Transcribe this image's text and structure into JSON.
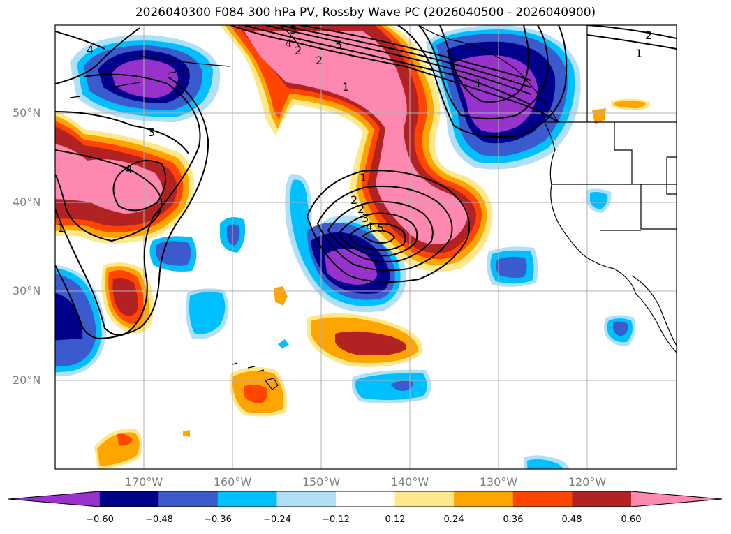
{
  "title": "2026040300 F084 300 hPa PV, Rossby Wave PC (2026040500 - 2026040900)",
  "lat_labels": [
    "50°N",
    "40°N",
    "30°N",
    "20°N"
  ],
  "lon_labels": [
    "170°W",
    "160°W",
    "150°W",
    "140°W",
    "130°W",
    "120°W"
  ],
  "colorbar": {
    "labels": [
      "−0.60",
      "−0.48",
      "−0.36",
      "−0.24",
      "−0.12",
      "0.12",
      "0.24",
      "0.36",
      "0.48",
      "0.60"
    ],
    "colors": [
      "#9932cc",
      "#00008b",
      "#3a5bcd",
      "#00bfff",
      "#afe0f8",
      "#ffffff",
      "#fde98a",
      "#ffa500",
      "#ff4500",
      "#b22222",
      "#ff88b0"
    ]
  },
  "contour_labels": [
    "4",
    "3",
    "4",
    "1",
    "2",
    "4",
    "3",
    "5",
    "1",
    "2",
    "2",
    "1",
    "2",
    "3",
    "4",
    "5",
    "1",
    "2",
    "1"
  ]
}
